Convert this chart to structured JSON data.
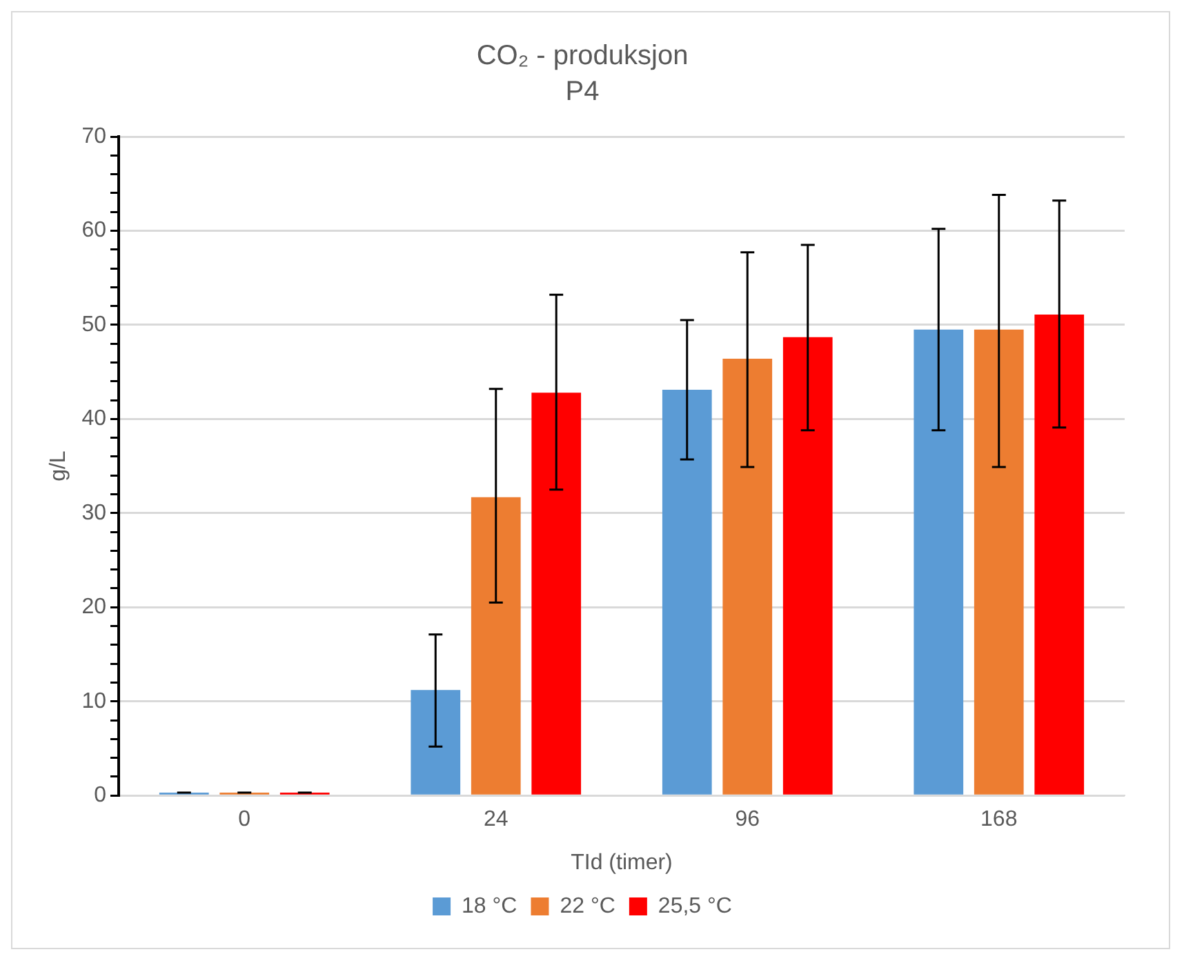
{
  "chart_data": {
    "type": "bar",
    "title": "CO₂ - produksjon",
    "subtitle": "P4",
    "xlabel": "TId (timer)",
    "ylabel": "g/L",
    "categories": [
      "0",
      "24",
      "96",
      "168"
    ],
    "series": [
      {
        "name": "18 °C",
        "color": "#5b9bd5",
        "values": [
          0.3,
          11.2,
          43.1,
          49.5
        ],
        "errors": [
          [
            0.3,
            0.3
          ],
          [
            5.2,
            17.1
          ],
          [
            35.7,
            50.5
          ],
          [
            38.8,
            60.2
          ]
        ]
      },
      {
        "name": "22 °C",
        "color": "#ed7d31",
        "values": [
          0.3,
          31.7,
          46.4,
          49.5
        ],
        "errors": [
          [
            0.3,
            0.3
          ],
          [
            20.5,
            43.2
          ],
          [
            34.9,
            57.7
          ],
          [
            34.9,
            63.8
          ]
        ]
      },
      {
        "name": "25,5 °C",
        "color": "#ff0000",
        "values": [
          0.3,
          42.8,
          48.7,
          51.1
        ],
        "errors": [
          [
            0.3,
            0.3
          ],
          [
            32.5,
            53.2
          ],
          [
            38.8,
            58.5
          ],
          [
            39.1,
            63.2
          ]
        ]
      }
    ],
    "ylim": [
      0,
      70
    ],
    "yticks": [
      0,
      {
        "value": 2,
        "label": null
      },
      {
        "value": 4,
        "label": null
      },
      {
        "value": 6,
        "label": null
      },
      {
        "value": 8,
        "label": null
      },
      10,
      {
        "value": 12,
        "label": null
      },
      {
        "value": 14,
        "label": null
      },
      {
        "value": 16,
        "label": null
      },
      {
        "value": 18,
        "label": null
      },
      20,
      {
        "value": 22,
        "label": null
      },
      {
        "value": 24,
        "label": null
      },
      {
        "value": 26,
        "label": null
      },
      {
        "value": 28,
        "label": null
      },
      30,
      {
        "value": 32,
        "label": null
      },
      {
        "value": 34,
        "label": null
      },
      {
        "value": 36,
        "label": null
      },
      {
        "value": 38,
        "label": null
      },
      40,
      {
        "value": 42,
        "label": null
      },
      {
        "value": 44,
        "label": null
      },
      {
        "value": 46,
        "label": null
      },
      {
        "value": 48,
        "label": null
      },
      50,
      {
        "value": 52,
        "label": null
      },
      {
        "value": 54,
        "label": null
      },
      {
        "value": 56,
        "label": null
      },
      {
        "value": 58,
        "label": null
      },
      60,
      {
        "value": 62,
        "label": null
      },
      {
        "value": 64,
        "label": null
      },
      {
        "value": 66,
        "label": null
      },
      {
        "value": 68,
        "label": null
      },
      70
    ],
    "grid": "y",
    "legend": "bottom"
  }
}
